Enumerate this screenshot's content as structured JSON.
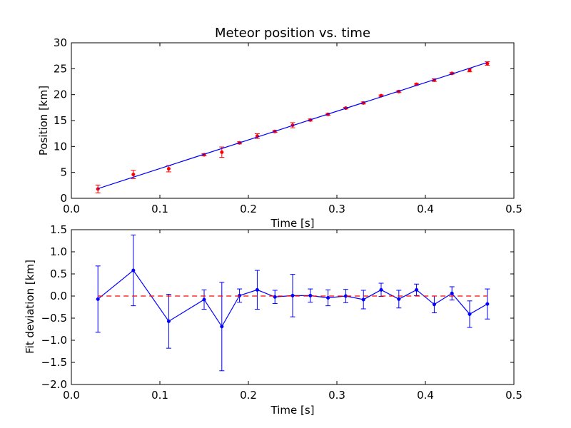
{
  "chart_data": [
    {
      "type": "scatter",
      "title": "Meteor position vs. time",
      "xlabel": "Time [s]",
      "ylabel": "Position [km]",
      "xlim": [
        0.0,
        0.5
      ],
      "ylim": [
        0,
        30
      ],
      "xticks": [
        0.0,
        0.1,
        0.2,
        0.3,
        0.4,
        0.5
      ],
      "xtick_labels": [
        "0.0",
        "0.1",
        "0.2",
        "0.3",
        "0.4",
        "0.5"
      ],
      "yticks": [
        0,
        5,
        10,
        15,
        20,
        25,
        30
      ],
      "ytick_labels": [
        "0",
        "5",
        "10",
        "15",
        "20",
        "25",
        "30"
      ],
      "grid": false,
      "series": [
        {
          "kind": "errorbar-points",
          "color": "#ff0000",
          "x": [
            0.03,
            0.07,
            0.11,
            0.15,
            0.17,
            0.19,
            0.21,
            0.23,
            0.25,
            0.27,
            0.29,
            0.31,
            0.33,
            0.35,
            0.37,
            0.39,
            0.41,
            0.43,
            0.45,
            0.47
          ],
          "y": [
            1.8,
            4.6,
            5.7,
            8.4,
            8.9,
            10.7,
            12.0,
            12.9,
            14.1,
            15.1,
            16.2,
            17.4,
            18.4,
            19.8,
            20.6,
            22.0,
            22.8,
            24.1,
            24.7,
            26.0
          ],
          "yerr": [
            0.75,
            0.8,
            0.6,
            0.2,
            1.0,
            0.2,
            0.45,
            0.2,
            0.5,
            0.2,
            0.2,
            0.15,
            0.2,
            0.15,
            0.2,
            0.15,
            0.25,
            0.15,
            0.3,
            0.35
          ]
        },
        {
          "kind": "fit-line",
          "color": "#0000ff",
          "x": [
            0.03,
            0.47
          ],
          "y": [
            1.87,
            26.2
          ]
        }
      ]
    },
    {
      "type": "line",
      "title": "",
      "xlabel": "Time [s]",
      "ylabel": "Fit deviation [km]",
      "xlim": [
        0.0,
        0.5
      ],
      "ylim": [
        -2.0,
        1.5
      ],
      "xticks": [
        0.0,
        0.1,
        0.2,
        0.3,
        0.4,
        0.5
      ],
      "xtick_labels": [
        "0.0",
        "0.1",
        "0.2",
        "0.3",
        "0.4",
        "0.5"
      ],
      "yticks": [
        -2.0,
        -1.5,
        -1.0,
        -0.5,
        0.0,
        0.5,
        1.0,
        1.5
      ],
      "ytick_labels": [
        "−2.0",
        "−1.5",
        "−1.0",
        "−0.5",
        "0.0",
        "0.5",
        "1.0",
        "1.5"
      ],
      "grid": false,
      "series": [
        {
          "kind": "errorbar-line",
          "color": "#0000ff",
          "x": [
            0.03,
            0.07,
            0.11,
            0.15,
            0.17,
            0.19,
            0.21,
            0.23,
            0.25,
            0.27,
            0.29,
            0.31,
            0.33,
            0.35,
            0.37,
            0.39,
            0.41,
            0.43,
            0.45,
            0.47
          ],
          "y": [
            -0.07,
            0.58,
            -0.57,
            -0.08,
            -0.69,
            0.01,
            0.14,
            -0.02,
            0.01,
            0.01,
            -0.04,
            0.0,
            -0.08,
            0.14,
            -0.07,
            0.14,
            -0.19,
            0.06,
            -0.41,
            -0.18
          ],
          "yerr": [
            0.75,
            0.8,
            0.61,
            0.22,
            1.0,
            0.15,
            0.44,
            0.15,
            0.48,
            0.15,
            0.18,
            0.15,
            0.21,
            0.15,
            0.2,
            0.13,
            0.19,
            0.15,
            0.3,
            0.34
          ]
        },
        {
          "kind": "reference-line",
          "color": "#ff0000",
          "style": "dashed",
          "x": [
            0.03,
            0.47
          ],
          "y": [
            0.0,
            0.0
          ]
        }
      ]
    }
  ]
}
